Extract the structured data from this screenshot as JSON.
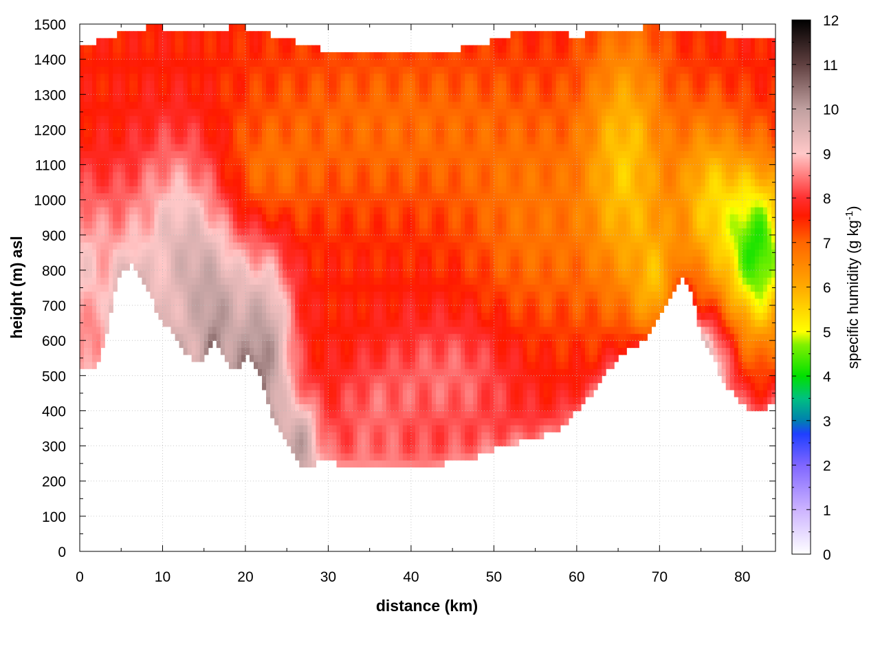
{
  "chart_data": {
    "type": "heatmap",
    "title": "",
    "xlabel": "distance (km)",
    "ylabel": "height (m) asl",
    "xlim": [
      0,
      84
    ],
    "ylim": [
      0,
      1500
    ],
    "x_ticks": [
      "0",
      "10",
      "20",
      "30",
      "40",
      "50",
      "60",
      "70",
      "80"
    ],
    "y_ticks": [
      "0",
      "100",
      "200",
      "300",
      "400",
      "500",
      "600",
      "700",
      "800",
      "900",
      "1000",
      "1100",
      "1200",
      "1300",
      "1400",
      "1500"
    ],
    "grid": true,
    "colorbar": {
      "label_main": "specific humidity (g kg",
      "label_sup": "-1",
      "label_close": ")",
      "range": [
        0,
        12
      ],
      "ticks": [
        "0",
        "1",
        "2",
        "3",
        "4",
        "5",
        "6",
        "7",
        "8",
        "9",
        "10",
        "11",
        "12"
      ],
      "colormap": [
        [
          0,
          "#ffffff"
        ],
        [
          1,
          "#ccb3ff"
        ],
        [
          2,
          "#7f66ff"
        ],
        [
          2.7,
          "#1f3fff"
        ],
        [
          3,
          "#007fb0"
        ],
        [
          3.5,
          "#00c080"
        ],
        [
          4,
          "#00e000"
        ],
        [
          4.7,
          "#80f000"
        ],
        [
          5,
          "#ffff00"
        ],
        [
          6,
          "#ffaa00"
        ],
        [
          7,
          "#ff6600"
        ],
        [
          7.6,
          "#ff1a00"
        ],
        [
          8,
          "#ff3030"
        ],
        [
          9,
          "#ffc8c8"
        ],
        [
          10,
          "#c0a0a0"
        ],
        [
          11,
          "#604040"
        ],
        [
          12,
          "#000000"
        ]
      ]
    },
    "terrain": {
      "x": [
        0,
        2,
        3,
        4,
        5,
        6,
        7,
        8,
        9,
        10,
        11,
        12,
        13,
        14,
        15,
        16,
        17,
        18,
        19,
        20,
        21,
        22,
        23,
        24,
        25,
        26,
        27,
        28,
        29,
        30,
        32,
        34,
        36,
        38,
        40,
        42,
        44,
        46,
        48,
        50,
        52,
        54,
        56,
        58,
        60,
        62,
        64,
        66,
        68,
        70,
        71,
        72,
        73,
        74,
        75,
        76,
        77,
        78,
        79,
        80,
        81,
        82,
        83,
        84
      ],
      "y": [
        510,
        520,
        600,
        720,
        790,
        815,
        800,
        760,
        700,
        640,
        630,
        600,
        560,
        530,
        540,
        600,
        570,
        520,
        520,
        560,
        540,
        480,
        400,
        340,
        320,
        270,
        235,
        240,
        255,
        255,
        245,
        240,
        240,
        240,
        240,
        240,
        250,
        260,
        270,
        290,
        300,
        320,
        330,
        350,
        400,
        450,
        520,
        570,
        600,
        660,
        720,
        760,
        780,
        720,
        620,
        580,
        520,
        470,
        450,
        420,
        400,
        400,
        410,
        420
      ]
    },
    "top": {
      "x": [
        0,
        2,
        4,
        5,
        6,
        8,
        10,
        12,
        14,
        16,
        18,
        20,
        22,
        24,
        26,
        28,
        30,
        33,
        36,
        40,
        44,
        48,
        52,
        54,
        56,
        58,
        60,
        62,
        64,
        66,
        68,
        70,
        72,
        74,
        76,
        78,
        80,
        82,
        84
      ],
      "y": [
        1430,
        1450,
        1460,
        1490,
        1480,
        1490,
        1490,
        1480,
        1490,
        1480,
        1490,
        1490,
        1480,
        1460,
        1450,
        1440,
        1420,
        1430,
        1420,
        1430,
        1420,
        1440,
        1470,
        1480,
        1480,
        1480,
        1460,
        1480,
        1490,
        1480,
        1490,
        1490,
        1480,
        1480,
        1480,
        1470,
        1460,
        1450,
        1460
      ]
    },
    "value_blobs": [
      {
        "x": 0,
        "y": 800,
        "sx": 6,
        "sy": 250,
        "v": 1.4
      },
      {
        "x": 12,
        "y": 900,
        "sx": 6,
        "sy": 300,
        "v": 1.6
      },
      {
        "x": 17,
        "y": 650,
        "sx": 5,
        "sy": 250,
        "v": 1.8
      },
      {
        "x": 23,
        "y": 550,
        "sx": 3,
        "sy": 300,
        "v": 2.0
      },
      {
        "x": 27,
        "y": 320,
        "sx": 2,
        "sy": 120,
        "v": 1.8
      },
      {
        "x": 22,
        "y": 1050,
        "sx": 5,
        "sy": 150,
        "v": -0.6
      },
      {
        "x": 35,
        "y": 400,
        "sx": 5,
        "sy": 150,
        "v": 0.6
      },
      {
        "x": 45,
        "y": 500,
        "sx": 8,
        "sy": 180,
        "v": 0.8
      },
      {
        "x": 38,
        "y": 1200,
        "sx": 20,
        "sy": 250,
        "v": -0.7
      },
      {
        "x": 55,
        "y": 900,
        "sx": 8,
        "sy": 300,
        "v": -0.7
      },
      {
        "x": 66,
        "y": 1100,
        "sx": 5,
        "sy": 400,
        "v": -1.8
      },
      {
        "x": 70,
        "y": 700,
        "sx": 3,
        "sy": 200,
        "v": -1.5
      },
      {
        "x": 76,
        "y": 1000,
        "sx": 4,
        "sy": 250,
        "v": -1.8
      },
      {
        "x": 82,
        "y": 850,
        "sx": 4,
        "sy": 250,
        "v": -3.3
      },
      {
        "x": 76,
        "y": 560,
        "sx": 3,
        "sy": 120,
        "v": 1.3
      }
    ]
  }
}
